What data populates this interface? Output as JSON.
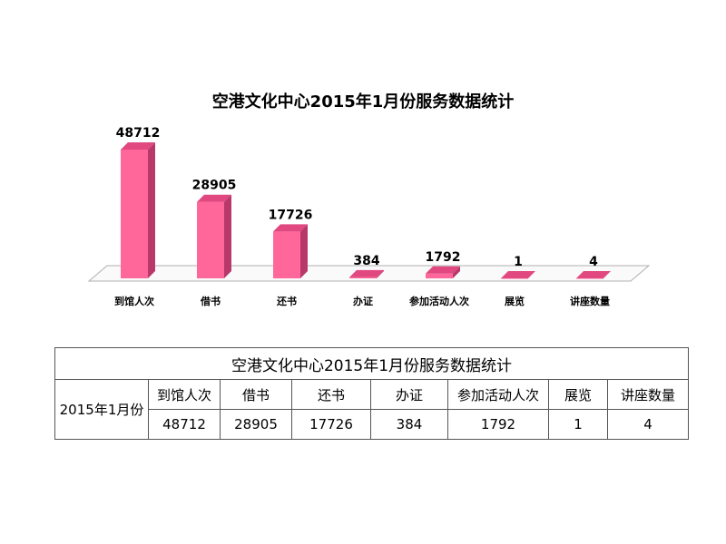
{
  "chart_data": {
    "type": "bar3d",
    "title": "空港文化中心2015年1月份服务数据统计",
    "categories": [
      "到馆人次",
      "借书",
      "还书",
      "办证",
      "参加活动人次",
      "展览",
      "讲座数量"
    ],
    "values": [
      48712,
      28905,
      17726,
      384,
      1792,
      1,
      4
    ],
    "color": "#ff6699"
  },
  "table": {
    "title": "空港文化中心2015年1月份服务数据统计",
    "row_label": "2015年1月份",
    "headers": [
      "到馆人次",
      "借书",
      "还书",
      "办证",
      "参加活动人次",
      "展览",
      "讲座数量"
    ],
    "values": [
      "48712",
      "28905",
      "17726",
      "384",
      "1792",
      "1",
      "4"
    ]
  }
}
